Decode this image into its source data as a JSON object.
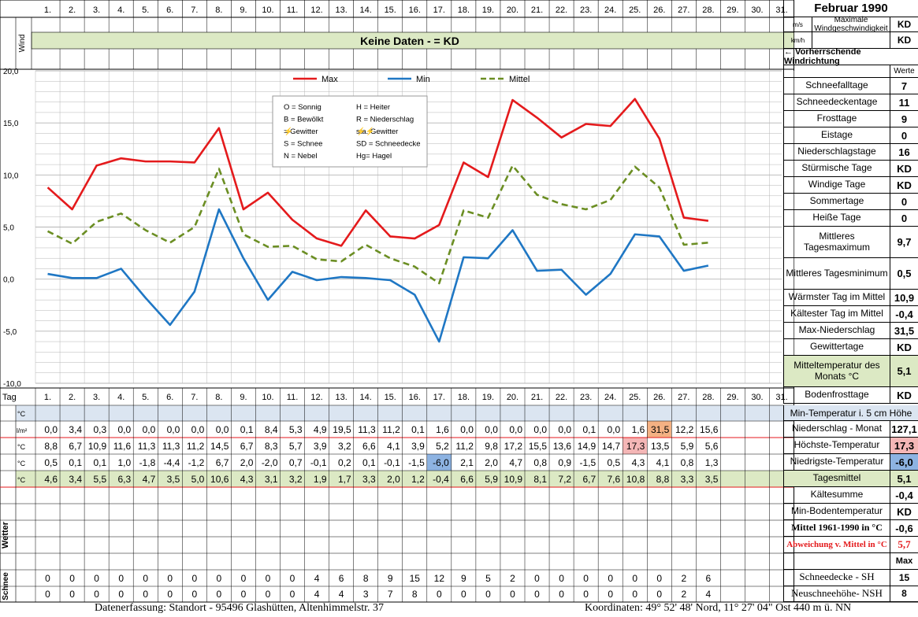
{
  "month_title": "Februar 1990",
  "days": [
    "1.",
    "2.",
    "3.",
    "4.",
    "5.",
    "6.",
    "7.",
    "8.",
    "9.",
    "10.",
    "11.",
    "12.",
    "13.",
    "14.",
    "15.",
    "16.",
    "17.",
    "18.",
    "19.",
    "20.",
    "21.",
    "22.",
    "23.",
    "24.",
    "25.",
    "26.",
    "27.",
    "28.",
    "29.",
    "30.",
    "31."
  ],
  "wind": {
    "label": "Wind",
    "unit_ms": "m/s",
    "unit_kmh": "km/h",
    "no_data_text": "Keine Daten -  = KD",
    "max_label": "Maximale Windgeschwindigkeit",
    "max_ms": "KD",
    "max_kmh": "KD",
    "direction_label": "← Vorherrschende Windrichtung"
  },
  "chart_data": {
    "type": "line",
    "x": [
      1,
      2,
      3,
      4,
      5,
      6,
      7,
      8,
      9,
      10,
      11,
      12,
      13,
      14,
      15,
      16,
      17,
      18,
      19,
      20,
      21,
      22,
      23,
      24,
      25,
      26,
      27,
      28
    ],
    "series": [
      {
        "name": "Max",
        "color": "#e41a1c",
        "dash": false,
        "values": [
          8.8,
          6.7,
          10.9,
          11.6,
          11.3,
          11.3,
          11.2,
          14.5,
          6.7,
          8.3,
          5.7,
          3.9,
          3.2,
          6.6,
          4.1,
          3.9,
          5.2,
          11.2,
          9.8,
          17.2,
          15.5,
          13.6,
          14.9,
          14.7,
          17.3,
          13.5,
          5.9,
          5.6
        ]
      },
      {
        "name": "Min",
        "color": "#1f77c4",
        "dash": false,
        "values": [
          0.5,
          0.1,
          0.1,
          1.0,
          -1.8,
          -4.4,
          -1.2,
          6.7,
          2.0,
          -2.0,
          0.7,
          -0.1,
          0.2,
          0.1,
          -0.1,
          -1.5,
          -6.0,
          2.1,
          2.0,
          4.7,
          0.8,
          0.9,
          -1.5,
          0.5,
          4.3,
          4.1,
          0.8,
          1.3
        ]
      },
      {
        "name": "Mittel",
        "color": "#6b8e23",
        "dash": true,
        "values": [
          4.6,
          3.4,
          5.5,
          6.3,
          4.7,
          3.5,
          5.0,
          10.6,
          4.3,
          3.1,
          3.2,
          1.9,
          1.7,
          3.3,
          2.0,
          1.2,
          -0.4,
          6.6,
          5.9,
          10.9,
          8.1,
          7.2,
          6.7,
          7.6,
          10.8,
          8.8,
          3.3,
          3.5
        ]
      }
    ],
    "y_ticks": [
      "20,0",
      "15,0",
      "10,0",
      "5,0",
      "0,0",
      "-5,0",
      "-10,0"
    ],
    "ylim": [
      -10,
      20
    ],
    "legend_items": [
      "Max",
      "Min",
      "Mittel"
    ],
    "grid": true
  },
  "weather_legend": [
    [
      "O = Sonnig",
      "H = Heiter"
    ],
    [
      "B = Bewölkt",
      "R = Niederschlag"
    ],
    [
      "= Gewitter",
      "sta. Gewitter"
    ],
    [
      "S = Schnee",
      "SD = Schneedecke"
    ],
    [
      "N = Nebel",
      "Hg= Hagel"
    ]
  ],
  "stats_header": "Werte",
  "stats": [
    {
      "label": "Schneefalltage",
      "value": "7"
    },
    {
      "label": "Schneedeckentage",
      "value": "11"
    },
    {
      "label": "Frosttage",
      "value": "9"
    },
    {
      "label": "Eistage",
      "value": "0"
    },
    {
      "label": "Niederschlagstage",
      "value": "16"
    },
    {
      "label": "Stürmische Tage",
      "value": "KD"
    },
    {
      "label": "Windige Tage",
      "value": "KD"
    },
    {
      "label": "Sommertage",
      "value": "0"
    },
    {
      "label": "Heiße Tage",
      "value": "0"
    },
    {
      "label": "Mittleres Tagesmaximum",
      "value": "9,7"
    },
    {
      "label": "Mittleres Tagesminimum",
      "value": "0,5"
    },
    {
      "label": "Wärmster Tag im Mittel",
      "value": "10,9"
    },
    {
      "label": "Kältester Tag im Mittel",
      "value": "-0,4"
    },
    {
      "label": "Max-Niederschlag",
      "value": "31,5"
    },
    {
      "label": "Gewittertage",
      "value": "KD"
    },
    {
      "label": "Mitteltemperatur des Monats °C",
      "value": "5,1"
    },
    {
      "label": "Bodenfrosttage",
      "value": "KD"
    }
  ],
  "table": {
    "tag_label": "Tag",
    "unit_c": "°C",
    "unit_rain": "l/m²",
    "soil_label": "Min-Temperatur i. 5 cm Höhe",
    "precip": [
      "0,0",
      "3,4",
      "0,3",
      "0,0",
      "0,0",
      "0,0",
      "0,0",
      "0,0",
      "0,1",
      "8,4",
      "5,3",
      "4,9",
      "19,5",
      "11,3",
      "11,2",
      "0,1",
      "1,6",
      "0,0",
      "0,0",
      "0,0",
      "0,0",
      "0,0",
      "0,1",
      "0,0",
      "1,6",
      "31,5",
      "12,2",
      "15,6"
    ],
    "tmax": [
      "8,8",
      "6,7",
      "10,9",
      "11,6",
      "11,3",
      "11,3",
      "11,2",
      "14,5",
      "6,7",
      "8,3",
      "5,7",
      "3,9",
      "3,2",
      "6,6",
      "4,1",
      "3,9",
      "5,2",
      "11,2",
      "9,8",
      "17,2",
      "15,5",
      "13,6",
      "14,9",
      "14,7",
      "17,3",
      "13,5",
      "5,9",
      "5,6"
    ],
    "tmin": [
      "0,5",
      "0,1",
      "0,1",
      "1,0",
      "-1,8",
      "-4,4",
      "-1,2",
      "6,7",
      "2,0",
      "-2,0",
      "0,7",
      "-0,1",
      "0,2",
      "0,1",
      "-0,1",
      "-1,5",
      "-6,0",
      "2,1",
      "2,0",
      "4,7",
      "0,8",
      "0,9",
      "-1,5",
      "0,5",
      "4,3",
      "4,1",
      "0,8",
      "1,3"
    ],
    "tmean": [
      "4,6",
      "3,4",
      "5,5",
      "6,3",
      "4,7",
      "3,5",
      "5,0",
      "10,6",
      "4,3",
      "3,1",
      "3,2",
      "1,9",
      "1,7",
      "3,3",
      "2,0",
      "1,2",
      "-0,4",
      "6,6",
      "5,9",
      "10,9",
      "8,1",
      "7,2",
      "6,7",
      "7,6",
      "10,8",
      "8,8",
      "3,3",
      "3,5"
    ],
    "snow_label": "Schnee",
    "weather_label": "Wetter",
    "snow_depth": [
      "0",
      "0",
      "0",
      "0",
      "0",
      "0",
      "0",
      "0",
      "0",
      "0",
      "0",
      "4",
      "6",
      "8",
      "9",
      "15",
      "12",
      "9",
      "5",
      "2",
      "0",
      "0",
      "0",
      "0",
      "0",
      "0",
      "2",
      "6"
    ],
    "new_snow": [
      "0",
      "0",
      "0",
      "0",
      "0",
      "0",
      "0",
      "0",
      "0",
      "0",
      "0",
      "4",
      "4",
      "3",
      "7",
      "8",
      "0",
      "0",
      "0",
      "0",
      "0",
      "0",
      "0",
      "0",
      "0",
      "0",
      "2",
      "4"
    ]
  },
  "month_stats": [
    {
      "label": "Niederschlag - Monat",
      "value": "127,1"
    },
    {
      "label": "Höchste-Temperatur",
      "value": "17,3"
    },
    {
      "label": "Niedrigste-Temperatur",
      "value": "-6,0"
    },
    {
      "label": "Tagesmittel",
      "value": "5,1"
    },
    {
      "label": "Kältesumme",
      "value": "-0,4"
    },
    {
      "label": "Min-Bodentemperatur",
      "value": "KD"
    },
    {
      "label": "Mittel 1961-1990 in °C",
      "value": "-0,6"
    },
    {
      "label": "Abweichung v. Mittel in °C",
      "value": "5,7"
    }
  ],
  "max_label": "Max",
  "snow_stats": [
    {
      "label": "Schneedecke -   SH",
      "value": "15"
    },
    {
      "label": "Neuschneehöhe- NSH",
      "value": "8"
    }
  ],
  "colors": {
    "green_fill": "#dce9c4",
    "blue_fill": "#dbe5f1",
    "orange_cell": "#f4b183",
    "pink_cell": "#f4b6b6",
    "blue_cell": "#8db3e2",
    "red_line": "#e41a1c",
    "grid": "#b5b5b5"
  },
  "footer": {
    "left": "Datenerfassung:  Standort -   95496  Glashütten, Altenhimmelstr. 37",
    "right": "Koordinaten:  49° 52' 48' Nord,  11° 27' 04\" Ost   440 m ü. NN"
  }
}
